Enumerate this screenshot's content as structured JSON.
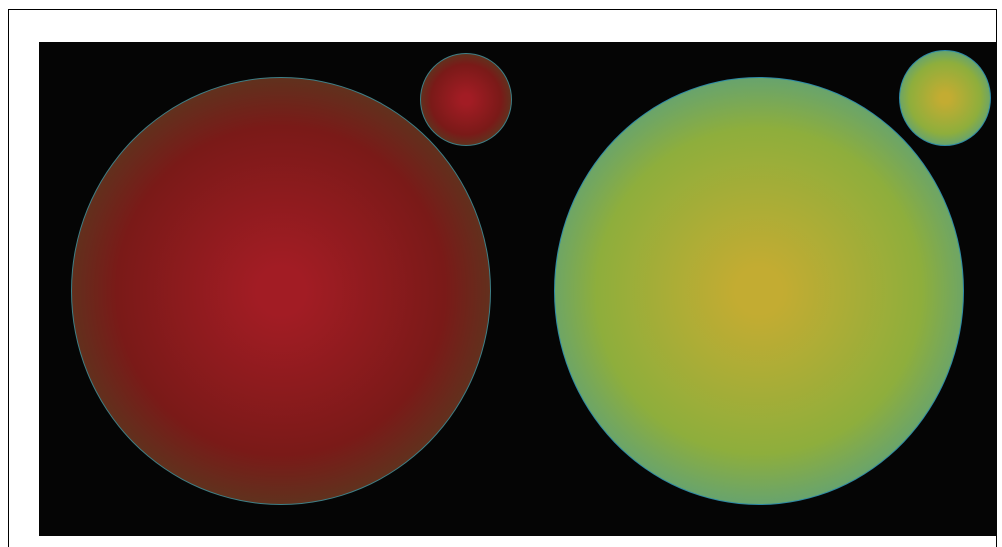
{
  "canvas": {
    "background": "#050505"
  },
  "gradients": {
    "red_green": {
      "center": "#a21c24",
      "mid": "#7a1a18",
      "edge": "#335a27",
      "stroke": "#3f7f86"
    },
    "gold_blue": {
      "center": "#c3ac32",
      "mid": "#8eae3c",
      "edge": "#2a93bc",
      "stroke": "#2e8aa6"
    }
  },
  "circles": [
    {
      "name": "large-red-green-circle",
      "gradient": "red_green"
    },
    {
      "name": "small-red-green-circle",
      "gradient": "red_green"
    },
    {
      "name": "large-gold-blue-circle",
      "gradient": "gold_blue"
    },
    {
      "name": "small-gold-blue-circle",
      "gradient": "gold_blue"
    }
  ]
}
